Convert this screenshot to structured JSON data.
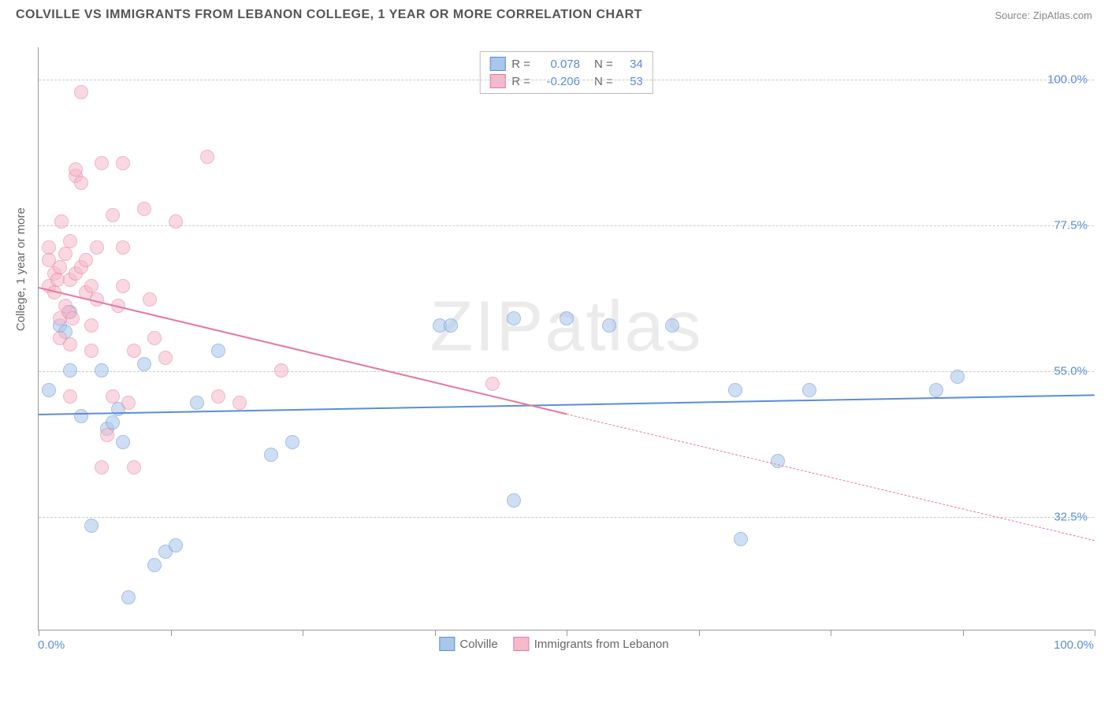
{
  "title": "COLVILLE VS IMMIGRANTS FROM LEBANON COLLEGE, 1 YEAR OR MORE CORRELATION CHART",
  "source": "Source: ZipAtlas.com",
  "y_axis_label": "College, 1 year or more",
  "watermark": "ZIPatlas",
  "chart": {
    "type": "scatter",
    "background_color": "#ffffff",
    "grid_color": "#cccccc",
    "axis_color": "#999999",
    "label_color": "#5b8dd6",
    "xlim": [
      0,
      100
    ],
    "ylim": [
      15,
      105
    ],
    "x_tick_positions": [
      0,
      12.5,
      25,
      37.5,
      50,
      62.5,
      75,
      87.5,
      100
    ],
    "y_grid": [
      {
        "value": 32.5,
        "label": "32.5%"
      },
      {
        "value": 55.0,
        "label": "55.0%"
      },
      {
        "value": 77.5,
        "label": "77.5%"
      },
      {
        "value": 100.0,
        "label": "100.0%"
      }
    ],
    "x_min_label": "0.0%",
    "x_max_label": "100.0%",
    "marker_radius": 9,
    "marker_opacity": 0.55,
    "series": [
      {
        "name": "Colville",
        "color_fill": "#a9c6eb",
        "color_stroke": "#5b8dd6",
        "R": "0.078",
        "N": "34",
        "trend": {
          "x1": 0,
          "y1": 48.5,
          "x2": 100,
          "y2": 51.5,
          "solid": true
        },
        "points": [
          [
            1,
            52
          ],
          [
            2,
            62
          ],
          [
            2.5,
            61
          ],
          [
            3,
            55
          ],
          [
            3,
            64
          ],
          [
            4,
            48
          ],
          [
            5,
            31
          ],
          [
            6,
            55
          ],
          [
            6.5,
            46
          ],
          [
            7,
            47
          ],
          [
            7.5,
            49
          ],
          [
            8,
            44
          ],
          [
            8.5,
            20
          ],
          [
            10,
            56
          ],
          [
            11,
            25
          ],
          [
            12,
            27
          ],
          [
            13,
            28
          ],
          [
            15,
            50
          ],
          [
            17,
            58
          ],
          [
            22,
            42
          ],
          [
            24,
            44
          ],
          [
            38,
            62
          ],
          [
            39,
            62
          ],
          [
            45,
            63
          ],
          [
            45,
            35
          ],
          [
            50,
            63
          ],
          [
            54,
            62
          ],
          [
            60,
            62
          ],
          [
            66,
            52
          ],
          [
            66.5,
            29
          ],
          [
            70,
            41
          ],
          [
            73,
            52
          ],
          [
            85,
            52
          ],
          [
            87,
            54
          ]
        ]
      },
      {
        "name": "Immigrants from Lebanon",
        "color_fill": "#f5b9cb",
        "color_stroke": "#e67a9b",
        "R": "-0.206",
        "N": "53",
        "trend": {
          "x1": 0,
          "y1": 68,
          "x2": 100,
          "y2": 29,
          "solid_until_x": 50
        },
        "points": [
          [
            1,
            68
          ],
          [
            1,
            74
          ],
          [
            1,
            72
          ],
          [
            1.5,
            67
          ],
          [
            1.5,
            70
          ],
          [
            1.8,
            69
          ],
          [
            2,
            71
          ],
          [
            2,
            63
          ],
          [
            2,
            60
          ],
          [
            2.2,
            78
          ],
          [
            2.5,
            73
          ],
          [
            2.5,
            65
          ],
          [
            2.8,
            64
          ],
          [
            3,
            51
          ],
          [
            3,
            59
          ],
          [
            3,
            69
          ],
          [
            3,
            75
          ],
          [
            3.2,
            63
          ],
          [
            3.5,
            70
          ],
          [
            3.5,
            85
          ],
          [
            3.5,
            86
          ],
          [
            4,
            98
          ],
          [
            4,
            84
          ],
          [
            4,
            71
          ],
          [
            4.5,
            67
          ],
          [
            4.5,
            72
          ],
          [
            5,
            68
          ],
          [
            5,
            62
          ],
          [
            5,
            58
          ],
          [
            5.5,
            66
          ],
          [
            5.5,
            74
          ],
          [
            6,
            87
          ],
          [
            6,
            40
          ],
          [
            6.5,
            45
          ],
          [
            7,
            51
          ],
          [
            7,
            79
          ],
          [
            7.5,
            65
          ],
          [
            8,
            68
          ],
          [
            8,
            74
          ],
          [
            8,
            87
          ],
          [
            8.5,
            50
          ],
          [
            9,
            58
          ],
          [
            9,
            40
          ],
          [
            10,
            80
          ],
          [
            10.5,
            66
          ],
          [
            11,
            60
          ],
          [
            12,
            57
          ],
          [
            13,
            78
          ],
          [
            16,
            88
          ],
          [
            17,
            51
          ],
          [
            19,
            50
          ],
          [
            23,
            55
          ],
          [
            43,
            53
          ]
        ]
      }
    ]
  },
  "legend_top": {
    "r_prefix": "R",
    "eq": "=",
    "n_prefix": "N"
  },
  "legend_bottom_labels": [
    "Colville",
    "Immigrants from Lebanon"
  ]
}
